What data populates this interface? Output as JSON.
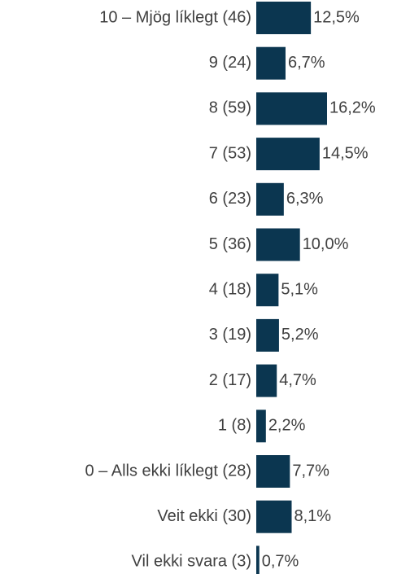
{
  "chart_data": {
    "type": "bar",
    "orientation": "horizontal",
    "categories": [
      "10 – Mjög líklegt (46)",
      "9 (24)",
      "8 (59)",
      "7 (53)",
      "6 (23)",
      "5 (36)",
      "4 (18)",
      "3 (19)",
      "2 (17)",
      "1 (8)",
      "0 – Alls ekki líklegt (28)",
      "Veit ekki (30)",
      "Vil ekki svara (3)"
    ],
    "values": [
      12.5,
      6.7,
      16.2,
      14.5,
      6.3,
      10.0,
      5.1,
      5.2,
      4.7,
      2.2,
      7.7,
      8.1,
      0.7
    ],
    "value_labels": [
      "12,5%",
      "6,7%",
      "16,2%",
      "14,5%",
      "6,3%",
      "10,0%",
      "5,1%",
      "5,2%",
      "4,7%",
      "2,2%",
      "7,7%",
      "8,1%",
      "0,7%"
    ],
    "color": "#0b3650"
  }
}
